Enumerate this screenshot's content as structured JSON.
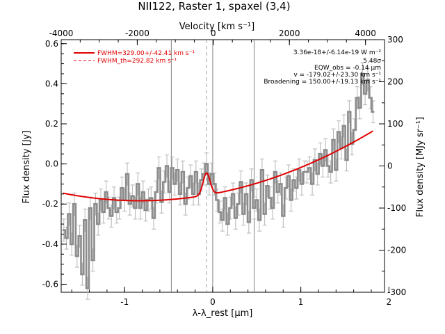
{
  "chart_data": {
    "type": "line",
    "title": "NII122, Raster 1, spaxel (3,4)",
    "xlabel": "λ-λ_rest [μm]",
    "ylabel": "Flux density [Jy]",
    "top_xlabel": "Velocity [km s⁻¹]",
    "right_ylabel": "Flux density [MJy sr⁻¹]",
    "xlim": [
      -1.72,
      1.95
    ],
    "ylim": [
      -0.64,
      0.62
    ],
    "top_xlim": [
      -4000,
      4500
    ],
    "right_ylim": [
      -300,
      300
    ],
    "x_ticks": [
      -1,
      0,
      1,
      2
    ],
    "y_ticks": [
      -0.6,
      -0.4,
      -0.2,
      0.0,
      0.2,
      0.4,
      0.6
    ],
    "top_ticks": [
      -4000,
      -2000,
      0,
      2000,
      4000
    ],
    "right_ticks": [
      -300,
      -200,
      -100,
      0,
      100,
      200,
      300
    ],
    "vertical_lines": {
      "solid": [
        -0.47,
        0.0,
        0.47
      ],
      "dashed": [
        -0.07
      ]
    },
    "legend": {
      "placement": "top-left",
      "entries": [
        {
          "label": "FWHM=329.00+/-42.41 km s⁻¹",
          "style": "solid"
        },
        {
          "label": "FWHM_th=292.82 km s⁻¹",
          "style": "dashed"
        }
      ]
    },
    "annotations": [
      "3.36e-18+/-6.14e-19 W m⁻²",
      "5.48σ",
      "EQW_obs = -0.14 μm",
      "v = -179.02+/-23.30 km s⁻¹",
      "Broadening = 150.00+/-19.13 km s⁻¹"
    ],
    "colors": {
      "data": "#8c8c8c",
      "model": "#e00000",
      "axes": "#000000"
    },
    "series": [
      {
        "name": "data",
        "x": [
          -1.69,
          -1.66,
          -1.63,
          -1.6,
          -1.57,
          -1.54,
          -1.51,
          -1.48,
          -1.45,
          -1.42,
          -1.39,
          -1.36,
          -1.33,
          -1.3,
          -1.27,
          -1.24,
          -1.21,
          -1.18,
          -1.15,
          -1.12,
          -1.09,
          -1.06,
          -1.03,
          -1.0,
          -0.97,
          -0.94,
          -0.91,
          -0.88,
          -0.85,
          -0.82,
          -0.79,
          -0.76,
          -0.73,
          -0.7,
          -0.67,
          -0.64,
          -0.61,
          -0.58,
          -0.55,
          -0.52,
          -0.49,
          -0.46,
          -0.43,
          -0.4,
          -0.37,
          -0.34,
          -0.31,
          -0.28,
          -0.25,
          -0.22,
          -0.19,
          -0.16,
          -0.13,
          -0.1,
          -0.07,
          -0.04,
          -0.01,
          0.02,
          0.05,
          0.08,
          0.11,
          0.14,
          0.17,
          0.2,
          0.23,
          0.26,
          0.29,
          0.32,
          0.35,
          0.38,
          0.41,
          0.44,
          0.47,
          0.5,
          0.53,
          0.56,
          0.59,
          0.62,
          0.65,
          0.68,
          0.71,
          0.74,
          0.77,
          0.8,
          0.83,
          0.86,
          0.89,
          0.92,
          0.95,
          0.98,
          1.01,
          1.04,
          1.07,
          1.1,
          1.13,
          1.16,
          1.19,
          1.22,
          1.25,
          1.28,
          1.31,
          1.34,
          1.37,
          1.4,
          1.43,
          1.46,
          1.49,
          1.52,
          1.55,
          1.58,
          1.61,
          1.64,
          1.67,
          1.7,
          1.73,
          1.76,
          1.79,
          1.82
        ],
        "y": [
          -0.33,
          -0.37,
          -0.25,
          -0.4,
          -0.2,
          -0.46,
          -0.36,
          -0.55,
          -0.28,
          -0.62,
          -0.22,
          -0.48,
          -0.2,
          -0.3,
          -0.18,
          -0.24,
          -0.14,
          -0.22,
          -0.26,
          -0.17,
          -0.24,
          -0.22,
          -0.12,
          -0.18,
          -0.05,
          -0.2,
          -0.16,
          -0.22,
          -0.1,
          -0.22,
          -0.14,
          -0.23,
          -0.18,
          -0.17,
          -0.27,
          -0.14,
          -0.02,
          -0.19,
          -0.09,
          -0.01,
          -0.14,
          -0.02,
          -0.1,
          -0.03,
          -0.15,
          -0.04,
          -0.2,
          -0.12,
          -0.06,
          -0.15,
          -0.04,
          -0.15,
          -0.08,
          -0.05,
          0.0,
          -0.1,
          -0.05,
          -0.1,
          -0.18,
          -0.24,
          -0.28,
          -0.17,
          -0.3,
          -0.22,
          -0.15,
          -0.27,
          -0.2,
          -0.09,
          -0.25,
          -0.15,
          -0.29,
          -0.08,
          -0.22,
          -0.18,
          -0.28,
          -0.03,
          -0.25,
          -0.11,
          -0.17,
          -0.22,
          -0.04,
          -0.14,
          -0.1,
          -0.26,
          -0.12,
          -0.06,
          -0.18,
          -0.08,
          -0.12,
          -0.03,
          -0.1,
          -0.04,
          -0.04,
          -0.02,
          -0.1,
          0.02,
          -0.05,
          0.05,
          -0.01,
          0.07,
          -0.01,
          -0.04,
          0.12,
          -0.03,
          0.16,
          0.08,
          0.19,
          0.02,
          0.26,
          0.1,
          0.17,
          0.33,
          0.28,
          0.45,
          0.35,
          0.42,
          0.33,
          0.26
        ]
      },
      {
        "name": "model",
        "baseline": {
          "a": -0.1812,
          "b": 0.0216,
          "c": 0.0497,
          "center": -0.61
        },
        "gaussian": {
          "amplitude": 0.11,
          "center": -0.07,
          "sigma": 0.04
        }
      }
    ]
  }
}
